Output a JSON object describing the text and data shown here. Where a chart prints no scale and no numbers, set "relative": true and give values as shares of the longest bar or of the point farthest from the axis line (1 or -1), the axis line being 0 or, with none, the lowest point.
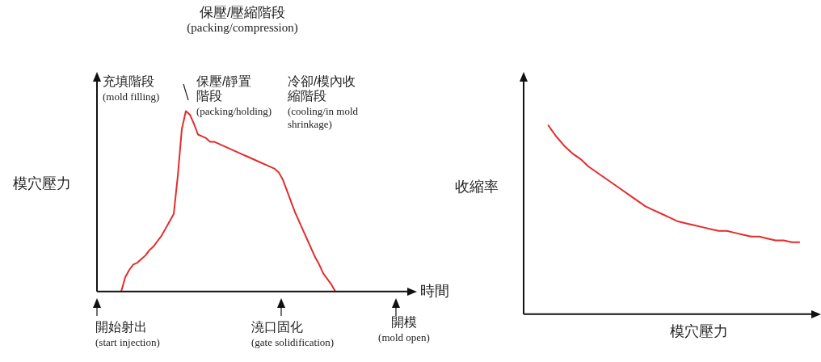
{
  "chart_data": [
    {
      "type": "line",
      "relative": true,
      "grid": false,
      "legend": false,
      "marker": "none",
      "ylabel": "模穴壓力",
      "xlabel": "時間",
      "categories": [
        null,
        null,
        null,
        null,
        null,
        null,
        null,
        null,
        null,
        null,
        null,
        null,
        null,
        null,
        null,
        null,
        null,
        null,
        null,
        null,
        null,
        null,
        null,
        null,
        null,
        null,
        null,
        null,
        null,
        null,
        null,
        null,
        null,
        null,
        null,
        null,
        null,
        null,
        null,
        null,
        null,
        null,
        null,
        null,
        null,
        null,
        null,
        null,
        null,
        null,
        null,
        null,
        null,
        null,
        null,
        null,
        null,
        null,
        null,
        null,
        null,
        null,
        null,
        null,
        null,
        null,
        null,
        null,
        null,
        null,
        null,
        null,
        null,
        null,
        null,
        null,
        null,
        null,
        null
      ],
      "series": [
        {
          "color": "#e52b2b",
          "values": [
            null,
            null,
            null,
            null,
            null,
            null,
            0,
            0.08,
            0.12,
            0.15,
            0.16,
            0.18,
            0.2,
            0.23,
            0.25,
            0.28,
            0.31,
            0.35,
            0.39,
            0.43,
            0.64,
            0.9,
            1,
            0.98,
            0.93,
            0.87,
            0.86,
            0.85,
            0.83,
            0.83,
            0.82,
            0.81,
            0.8,
            0.79,
            0.78,
            0.77,
            0.76,
            0.75,
            0.74,
            0.73,
            0.72,
            0.71,
            0.7,
            0.69,
            0.68,
            0.66,
            0.62,
            0.56,
            0.5,
            0.44,
            0.39,
            0.34,
            0.29,
            0.24,
            0.19,
            0.15,
            0.1,
            0.07,
            0.04,
            0,
            null,
            null,
            null,
            null,
            null,
            null,
            null,
            null,
            null,
            null,
            null,
            null,
            null,
            null,
            null,
            null,
            null,
            null,
            null
          ]
        }
      ],
      "annotations": [
        "保壓/壓縮階段\n(packing/compression)",
        "充填階段\n(mold filling)",
        "保壓/靜置階段\n(packing/holding)",
        "冷卻/模內收縮階段\n(cooling/in mold shrinkage)",
        "開始射出\n(start injection)",
        "澆口固化\n(gate solidification)",
        "開模\n(mold open)"
      ]
    },
    {
      "type": "line",
      "relative": true,
      "grid": false,
      "legend": false,
      "marker": "none",
      "ylabel": "收縮率",
      "xlabel": "模穴壓力",
      "categories": [
        null,
        null,
        null,
        null,
        null,
        null,
        null,
        null,
        null,
        null,
        null,
        null,
        null,
        null,
        null,
        null,
        null,
        null,
        null,
        null,
        null,
        null,
        null,
        null,
        null,
        null,
        null,
        null,
        null,
        null,
        null,
        null,
        null,
        null,
        null,
        null,
        null
      ],
      "series": [
        {
          "color": "#e52b2b",
          "values": [
            null,
            null,
            null,
            1,
            0.94,
            0.89,
            0.85,
            0.82,
            0.78,
            0.75,
            0.72,
            0.69,
            0.66,
            0.63,
            0.6,
            0.57,
            0.55,
            0.53,
            0.51,
            0.49,
            0.48,
            0.47,
            0.46,
            0.45,
            0.44,
            0.44,
            0.43,
            0.42,
            0.41,
            0.41,
            0.4,
            0.39,
            0.39,
            0.38,
            0.38,
            null,
            null
          ]
        }
      ]
    }
  ]
}
